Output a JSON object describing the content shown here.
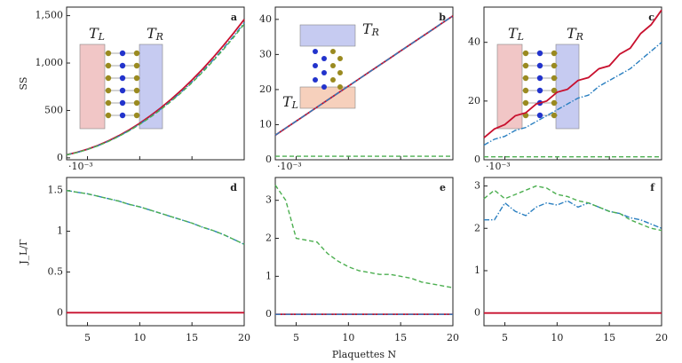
{
  "chart_data": [
    {
      "type": "line",
      "label": "a",
      "ylabel": "SS",
      "show_xtick_labels": false,
      "x": [
        3,
        4,
        5,
        6,
        7,
        8,
        9,
        10,
        11,
        12,
        13,
        14,
        15,
        16,
        17,
        18,
        19,
        20
      ],
      "xlim": [
        3,
        20
      ],
      "xticks": [
        5,
        10,
        15,
        20
      ],
      "ylim": [
        -20,
        1590
      ],
      "yticks": [
        0,
        500,
        {
          "value": 1000,
          "label": "1,000"
        },
        {
          "value": 1500,
          "label": "1,500"
        }
      ],
      "annotations": [
        {
          "base": "T",
          "sub": "L"
        },
        {
          "base": "T",
          "sub": "R"
        }
      ],
      "series": [
        {
          "color": "#c8102e",
          "style": "solid",
          "values": [
            33,
            58,
            91,
            131,
            179,
            234,
            296,
            365,
            442,
            526,
            617,
            715,
            821,
            934,
            1055,
            1183,
            1318,
            1460
          ]
        },
        {
          "color": "#2a7fc0",
          "style": "dashdot",
          "values": [
            32,
            57,
            89,
            128,
            175,
            228,
            289,
            356,
            431,
            513,
            602,
            697,
            800,
            911,
            1029,
            1153,
            1285,
            1424
          ]
        },
        {
          "color": "#4caf50",
          "style": "dashed",
          "values": [
            31,
            56,
            88,
            127,
            173,
            226,
            286,
            353,
            427,
            508,
            596,
            690,
            792,
            902,
            1019,
            1142,
            1272,
            1410
          ]
        }
      ]
    },
    {
      "type": "line",
      "label": "b",
      "show_xtick_labels": false,
      "x": [
        3,
        4,
        5,
        6,
        7,
        8,
        9,
        10,
        11,
        12,
        13,
        14,
        15,
        16,
        17,
        18,
        19,
        20
      ],
      "xlim": [
        3,
        20
      ],
      "xticks": [
        5,
        10,
        15,
        20
      ],
      "ylim": [
        0,
        43.5
      ],
      "yticks": [
        0,
        10,
        20,
        30,
        40
      ],
      "annotations": [
        {
          "base": "T",
          "sub": "R"
        },
        {
          "base": "T",
          "sub": "L"
        }
      ],
      "series": [
        {
          "color": "#c8102e",
          "style": "solid",
          "values": [
            7,
            9,
            11,
            13,
            15,
            17,
            19,
            21,
            23,
            25,
            27,
            29,
            31,
            33,
            35,
            37,
            39,
            41
          ]
        },
        {
          "color": "#2a7fc0",
          "style": "dashdot",
          "values": [
            7,
            9,
            11,
            13,
            15,
            17,
            19,
            21,
            23,
            25,
            27,
            29,
            31,
            33,
            35,
            37,
            39,
            41
          ]
        },
        {
          "color": "#4caf50",
          "style": "dashed",
          "values": [
            1,
            1,
            1,
            1,
            1,
            1,
            1,
            1,
            1,
            1,
            1,
            1,
            1,
            1,
            1,
            1,
            1,
            1
          ]
        }
      ]
    },
    {
      "type": "line",
      "label": "c",
      "show_xtick_labels": false,
      "x": [
        3,
        4,
        5,
        6,
        7,
        8,
        9,
        10,
        11,
        12,
        13,
        14,
        15,
        16,
        17,
        18,
        19,
        20
      ],
      "xlim": [
        3,
        20
      ],
      "xticks": [
        5,
        10,
        15,
        20
      ],
      "ylim": [
        0,
        52
      ],
      "yticks": [
        0,
        20,
        40
      ],
      "annotations": [
        {
          "base": "T",
          "sub": "L"
        },
        {
          "base": "T",
          "sub": "R"
        }
      ],
      "series": [
        {
          "color": "#c8102e",
          "style": "solid",
          "values": [
            7.5,
            10.5,
            12,
            15,
            16,
            19,
            20,
            23,
            24,
            27,
            28,
            31,
            32,
            36,
            38,
            43,
            46,
            51
          ]
        },
        {
          "color": "#2a7fc0",
          "style": "dashdot",
          "values": [
            5,
            7,
            8,
            10,
            11,
            13,
            15,
            17,
            19,
            21,
            22,
            25,
            27,
            29,
            31,
            34,
            37,
            40
          ]
        },
        {
          "color": "#4caf50",
          "style": "dashed",
          "values": [
            1,
            1,
            1,
            1,
            1,
            1,
            1,
            1,
            1,
            1,
            1,
            1,
            1,
            1,
            1,
            1,
            1,
            1
          ]
        }
      ]
    },
    {
      "type": "line",
      "label": "d",
      "ylabel": "J_L/Γ",
      "scale_note": "·10⁻³",
      "show_xtick_labels": true,
      "x": [
        3,
        4,
        5,
        6,
        7,
        8,
        9,
        10,
        11,
        12,
        13,
        14,
        15,
        16,
        17,
        18,
        19,
        20
      ],
      "xlim": [
        3,
        20
      ],
      "xticks": [
        5,
        10,
        15,
        20
      ],
      "ylim": [
        -0.16,
        1.66
      ],
      "yticks": [
        0,
        0.5,
        1,
        1.5
      ],
      "series": [
        {
          "color": "#c8102e",
          "style": "solid",
          "values": [
            0,
            0,
            0,
            0,
            0,
            0,
            0,
            0,
            0,
            0,
            0,
            0,
            0,
            0,
            0,
            0,
            0,
            0
          ]
        },
        {
          "color": "#2a7fc0",
          "style": "dashdot",
          "values": [
            1.5,
            1.48,
            1.46,
            1.43,
            1.4,
            1.37,
            1.33,
            1.3,
            1.26,
            1.22,
            1.18,
            1.14,
            1.1,
            1.05,
            1.01,
            0.96,
            0.9,
            0.84
          ]
        },
        {
          "color": "#4caf50",
          "style": "dashed",
          "values": [
            1.5,
            1.48,
            1.46,
            1.43,
            1.4,
            1.37,
            1.33,
            1.3,
            1.26,
            1.22,
            1.18,
            1.14,
            1.1,
            1.05,
            1.01,
            0.96,
            0.9,
            0.84
          ]
        }
      ]
    },
    {
      "type": "line",
      "label": "e",
      "xlabel": "Plaquettes N",
      "scale_note": "·10⁻³",
      "show_xtick_labels": true,
      "x": [
        3,
        4,
        5,
        6,
        7,
        8,
        9,
        10,
        11,
        12,
        13,
        14,
        15,
        16,
        17,
        18,
        19,
        20
      ],
      "xlim": [
        3,
        20
      ],
      "xticks": [
        5,
        10,
        15,
        20
      ],
      "ylim": [
        -0.3,
        3.6
      ],
      "yticks": [
        0,
        1,
        2,
        3
      ],
      "series": [
        {
          "color": "#c8102e",
          "style": "solid",
          "values": [
            0,
            0,
            0,
            0,
            0,
            0,
            0,
            0,
            0,
            0,
            0,
            0,
            0,
            0,
            0,
            0,
            0,
            0
          ]
        },
        {
          "color": "#2a7fc0",
          "style": "dashdot",
          "values": [
            0,
            0,
            0,
            0,
            0,
            0,
            0,
            0,
            0,
            0,
            0,
            0,
            0,
            0,
            0,
            0,
            0,
            0
          ]
        },
        {
          "color": "#4caf50",
          "style": "dashed",
          "values": [
            3.4,
            3.0,
            2.0,
            1.95,
            1.9,
            1.6,
            1.4,
            1.25,
            1.15,
            1.1,
            1.05,
            1.05,
            1.0,
            0.95,
            0.85,
            0.8,
            0.75,
            0.7
          ]
        }
      ]
    },
    {
      "type": "line",
      "label": "f",
      "scale_note": "·10⁻³",
      "show_xtick_labels": true,
      "x": [
        3,
        4,
        5,
        6,
        7,
        8,
        9,
        10,
        11,
        12,
        13,
        14,
        15,
        16,
        17,
        18,
        19,
        20
      ],
      "xlim": [
        3,
        20
      ],
      "xticks": [
        5,
        10,
        15,
        20
      ],
      "ylim": [
        -0.3,
        3.2
      ],
      "yticks": [
        0,
        1,
        2,
        3
      ],
      "series": [
        {
          "color": "#c8102e",
          "style": "solid",
          "values": [
            0,
            0,
            0,
            0,
            0,
            0,
            0,
            0,
            0,
            0,
            0,
            0,
            0,
            0,
            0,
            0,
            0,
            0
          ]
        },
        {
          "color": "#2a7fc0",
          "style": "dashdot",
          "values": [
            2.2,
            2.2,
            2.6,
            2.4,
            2.3,
            2.5,
            2.6,
            2.55,
            2.65,
            2.5,
            2.6,
            2.5,
            2.4,
            2.35,
            2.25,
            2.2,
            2.1,
            2.0
          ]
        },
        {
          "color": "#4caf50",
          "style": "dashed",
          "values": [
            2.7,
            2.9,
            2.7,
            2.8,
            2.9,
            3.0,
            2.95,
            2.8,
            2.75,
            2.65,
            2.6,
            2.5,
            2.4,
            2.35,
            2.2,
            2.1,
            2.0,
            1.95
          ]
        }
      ]
    }
  ]
}
